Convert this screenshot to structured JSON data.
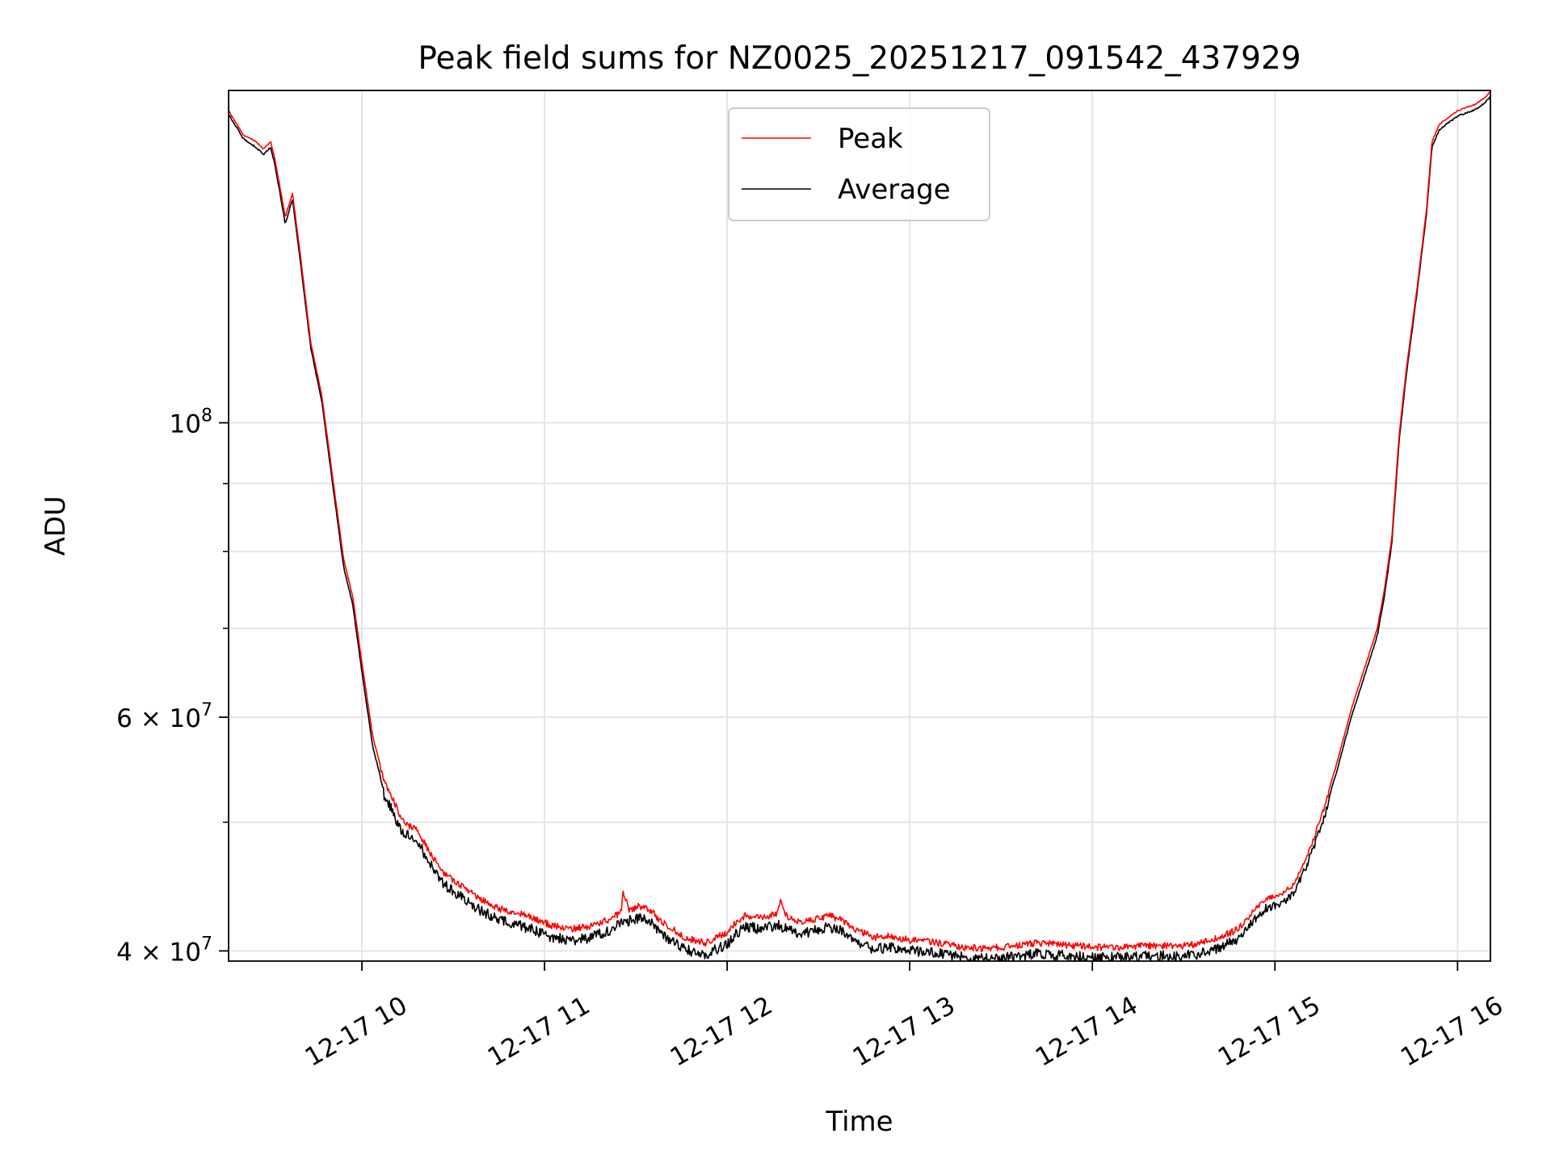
{
  "chart_data": {
    "type": "line",
    "title": "Peak field sums for NZ0025_20251217_091542_437929",
    "xlabel": "Time",
    "ylabel": "ADU",
    "yscale": "log",
    "xlim": [
      9.27,
      16.18
    ],
    "ylim": [
      39300000,
      178000000
    ],
    "grid": true,
    "legend_position": "upper center",
    "x_unit": "hour of day 2025-12-17",
    "x_ticks": [
      {
        "value": 10,
        "label": "12-17 10"
      },
      {
        "value": 11,
        "label": "12-17 11"
      },
      {
        "value": 12,
        "label": "12-17 12"
      },
      {
        "value": 13,
        "label": "12-17 13"
      },
      {
        "value": 14,
        "label": "12-17 14"
      },
      {
        "value": 15,
        "label": "12-17 15"
      },
      {
        "value": 16,
        "label": "12-17 16"
      }
    ],
    "y_major_ticks": [
      {
        "value": 40000000,
        "base": "4",
        "exp": "7"
      },
      {
        "value": 60000000,
        "base": "6",
        "exp": "7"
      },
      {
        "value": 100000000,
        "base": "10",
        "exp": "8"
      }
    ],
    "y_minor_gridlines": [
      50000000,
      70000000,
      80000000,
      90000000
    ],
    "series": [
      {
        "name": "Peak",
        "color": "#ff0000",
        "x": [
          9.27,
          9.35,
          9.42,
          9.46,
          9.5,
          9.52,
          9.55,
          9.58,
          9.62,
          9.66,
          9.72,
          9.78,
          9.84,
          9.9,
          9.95,
          10.0,
          10.06,
          10.12,
          10.18,
          10.22,
          10.26,
          10.3,
          10.36,
          10.45,
          10.55,
          10.65,
          10.75,
          10.85,
          10.95,
          11.05,
          11.15,
          11.25,
          11.35,
          11.42,
          11.43,
          11.46,
          11.52,
          11.58,
          11.64,
          11.7,
          11.76,
          11.82,
          11.88,
          11.94,
          12.0,
          12.05,
          12.1,
          12.2,
          12.28,
          12.29,
          12.32,
          12.4,
          12.48,
          12.55,
          12.62,
          12.7,
          12.8,
          12.9,
          13.0,
          13.1,
          13.2,
          13.3,
          13.4,
          13.5,
          13.6,
          13.7,
          13.8,
          13.9,
          14.0,
          14.1,
          14.2,
          14.3,
          14.4,
          14.5,
          14.6,
          14.7,
          14.8,
          14.88,
          14.95,
          15.02,
          15.1,
          15.18,
          15.26,
          15.34,
          15.42,
          15.5,
          15.56,
          15.6,
          15.64,
          15.68,
          15.72,
          15.78,
          15.83,
          15.86,
          15.9,
          15.95,
          16.0,
          16.05,
          16.1,
          16.15,
          16.18
        ],
        "y": [
          172000000,
          165000000,
          163000000,
          161000000,
          163000000,
          159000000,
          151000000,
          143000000,
          149000000,
          135000000,
          115000000,
          105000000,
          91000000,
          79000000,
          74000000,
          66000000,
          58000000,
          54000000,
          52000000,
          50500000,
          50000000,
          49800000,
          48000000,
          46000000,
          45000000,
          44000000,
          43300000,
          43000000,
          42500000,
          42000000,
          41800000,
          42000000,
          42500000,
          43000000,
          44800000,
          43200000,
          43500000,
          43200000,
          42300000,
          41800000,
          41200000,
          41000000,
          40800000,
          41200000,
          41500000,
          42300000,
          42800000,
          42600000,
          43000000,
          44000000,
          42800000,
          42300000,
          42500000,
          42800000,
          42500000,
          41800000,
          41200000,
          41300000,
          41000000,
          40900000,
          40700000,
          40500000,
          40400000,
          40500000,
          40600000,
          40800000,
          40700000,
          40600000,
          40500000,
          40500000,
          40500000,
          40600000,
          40600000,
          40600000,
          40800000,
          41200000,
          41800000,
          43000000,
          44000000,
          44200000,
          45000000,
          47500000,
          51000000,
          55500000,
          61000000,
          66000000,
          70000000,
          75000000,
          82000000,
          98000000,
          110000000,
          127000000,
          145000000,
          163000000,
          168000000,
          170000000,
          172000000,
          173000000,
          174000000,
          176000000,
          178000000
        ]
      },
      {
        "name": "Average",
        "color": "#000000",
        "x": [
          9.27,
          9.35,
          9.42,
          9.46,
          9.5,
          9.52,
          9.55,
          9.58,
          9.62,
          9.66,
          9.72,
          9.78,
          9.84,
          9.9,
          9.95,
          10.0,
          10.06,
          10.12,
          10.18,
          10.22,
          10.26,
          10.3,
          10.36,
          10.45,
          10.55,
          10.65,
          10.75,
          10.85,
          10.95,
          11.05,
          11.15,
          11.25,
          11.35,
          11.42,
          11.43,
          11.46,
          11.52,
          11.58,
          11.64,
          11.7,
          11.76,
          11.82,
          11.88,
          11.94,
          12.0,
          12.05,
          12.1,
          12.2,
          12.28,
          12.29,
          12.32,
          12.4,
          12.48,
          12.55,
          12.62,
          12.7,
          12.8,
          12.9,
          13.0,
          13.1,
          13.2,
          13.3,
          13.4,
          13.5,
          13.6,
          13.7,
          13.8,
          13.9,
          14.0,
          14.1,
          14.2,
          14.3,
          14.4,
          14.5,
          14.6,
          14.7,
          14.8,
          14.88,
          14.95,
          15.02,
          15.1,
          15.18,
          15.26,
          15.34,
          15.42,
          15.5,
          15.56,
          15.6,
          15.64,
          15.68,
          15.72,
          15.78,
          15.83,
          15.86,
          15.9,
          15.95,
          16.0,
          16.05,
          16.1,
          16.15,
          16.18
        ],
        "y": [
          171000000,
          164000000,
          161500000,
          159500000,
          161500000,
          157500000,
          149500000,
          141500000,
          147500000,
          133500000,
          114000000,
          104000000,
          90000000,
          78000000,
          73000000,
          65000000,
          57000000,
          53000000,
          51000000,
          49700000,
          49200000,
          49000000,
          47200000,
          45300000,
          44300000,
          43300000,
          42600000,
          42300000,
          41800000,
          41300000,
          41100000,
          41300000,
          41800000,
          42300000,
          42500000,
          42500000,
          42800000,
          42500000,
          41600000,
          41100000,
          40500000,
          40300000,
          40100000,
          40500000,
          40800000,
          41600000,
          42100000,
          41900000,
          42300000,
          42100000,
          42100000,
          41600000,
          41800000,
          42100000,
          41800000,
          41100000,
          40500000,
          40600000,
          40400000,
          40300000,
          40100000,
          39900000,
          39800000,
          39900000,
          40000000,
          40200000,
          40100000,
          40000000,
          39900000,
          39900000,
          39900000,
          40000000,
          40000000,
          40000000,
          40200000,
          40600000,
          41200000,
          42400000,
          43400000,
          43600000,
          44400000,
          46900000,
          50300000,
          54800000,
          60200000,
          65200000,
          69200000,
          74200000,
          81200000,
          97000000,
          109000000,
          126000000,
          144000000,
          161500000,
          166500000,
          168500000,
          170500000,
          171500000,
          172500000,
          174500000,
          176500000
        ]
      }
    ]
  }
}
